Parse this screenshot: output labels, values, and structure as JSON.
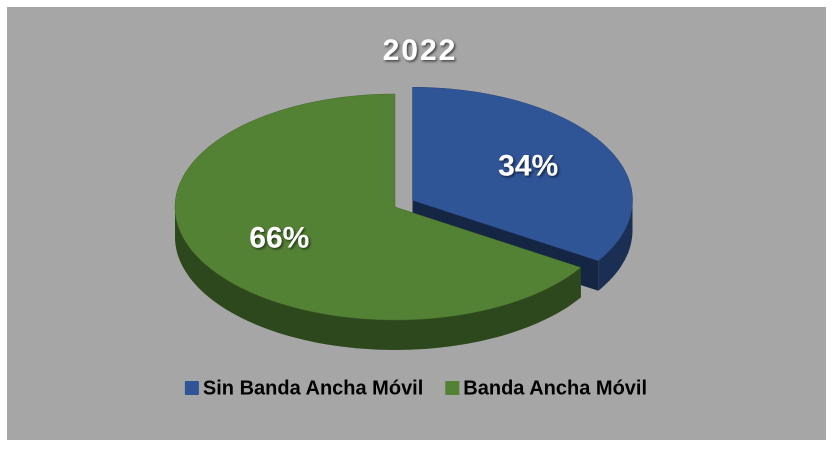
{
  "chart_data": {
    "type": "pie",
    "title": "2022",
    "categories": [
      "Sin Banda Ancha Móvil",
      "Banda Ancha Móvil"
    ],
    "values": [
      34,
      66
    ],
    "value_labels": [
      "34%",
      "66%"
    ],
    "colors": [
      "#2f5597",
      "#548235"
    ],
    "legend": "bottom",
    "explode": [
      1,
      0
    ]
  }
}
